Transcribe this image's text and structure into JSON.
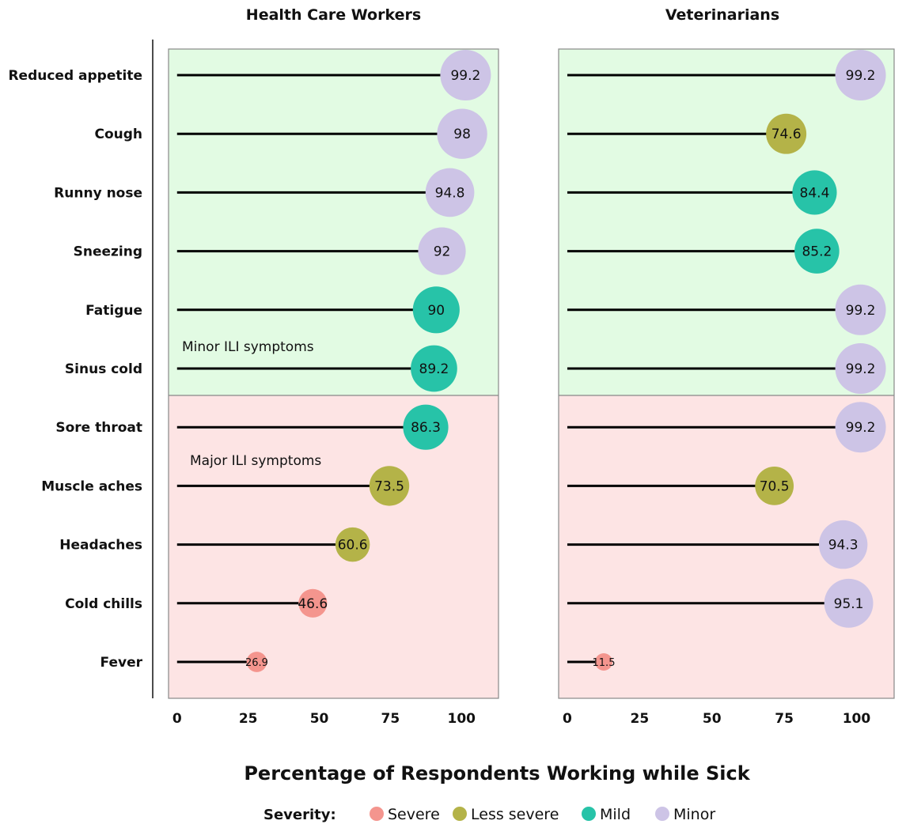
{
  "chart_data": {
    "type": "lollipop",
    "xlabel": "Percentage of Respondents Working while Sick",
    "xlim": [
      -3,
      113
    ],
    "xticks": [
      0,
      25,
      50,
      75,
      100
    ],
    "categories": [
      "Reduced appetite",
      "Cough",
      "Runny nose",
      "Sneezing",
      "Fatigue",
      "Sinus cold",
      "Sore throat",
      "Muscle aches",
      "Headaches",
      "Cold chills",
      "Fever"
    ],
    "regions": [
      {
        "label": "Minor ILI symptoms",
        "categories": [
          "Reduced appetite",
          "Cough",
          "Runny nose",
          "Sneezing",
          "Fatigue",
          "Sinus cold"
        ],
        "color": "#e2fbe3"
      },
      {
        "label": "Major ILI symptoms",
        "categories": [
          "Sore throat",
          "Muscle aches",
          "Headaches",
          "Cold chills",
          "Fever"
        ],
        "color": "#fde4e4"
      }
    ],
    "legend": {
      "title": "Severity:",
      "position": "bottom",
      "items": [
        {
          "name": "Severe",
          "color": "#f4958e"
        },
        {
          "name": "Less severe",
          "color": "#b4b348"
        },
        {
          "name": "Mild",
          "color": "#27c3a8"
        },
        {
          "name": "Minor",
          "color": "#cdc4e6"
        }
      ]
    },
    "panels": [
      {
        "title": "Health Care Workers",
        "values": [
          99.2,
          98,
          94.8,
          92,
          90,
          89.2,
          86.3,
          73.5,
          60.6,
          46.6,
          26.9
        ],
        "labels": [
          "99.2",
          "98",
          "94.8",
          "92",
          "90",
          "89.2",
          "86.3",
          "73.5",
          "60.6",
          "46.6",
          "26.9"
        ],
        "severity": [
          "Minor",
          "Minor",
          "Minor",
          "Minor",
          "Mild",
          "Mild",
          "Mild",
          "Less severe",
          "Less severe",
          "Severe",
          "Severe"
        ]
      },
      {
        "title": "Veterinarians",
        "values": [
          99.2,
          74.6,
          84.4,
          85.2,
          99.2,
          99.2,
          99.2,
          70.5,
          94.3,
          95.1,
          11.5
        ],
        "labels": [
          "99.2",
          "74.6",
          "84.4",
          "85.2",
          "99.2",
          "99.2",
          "99.2",
          "70.5",
          "94.3",
          "95.1",
          "11.5"
        ],
        "severity": [
          "Minor",
          "Less severe",
          "Mild",
          "Mild",
          "Minor",
          "Minor",
          "Minor",
          "Less severe",
          "Minor",
          "Minor",
          "Severe"
        ]
      }
    ]
  }
}
